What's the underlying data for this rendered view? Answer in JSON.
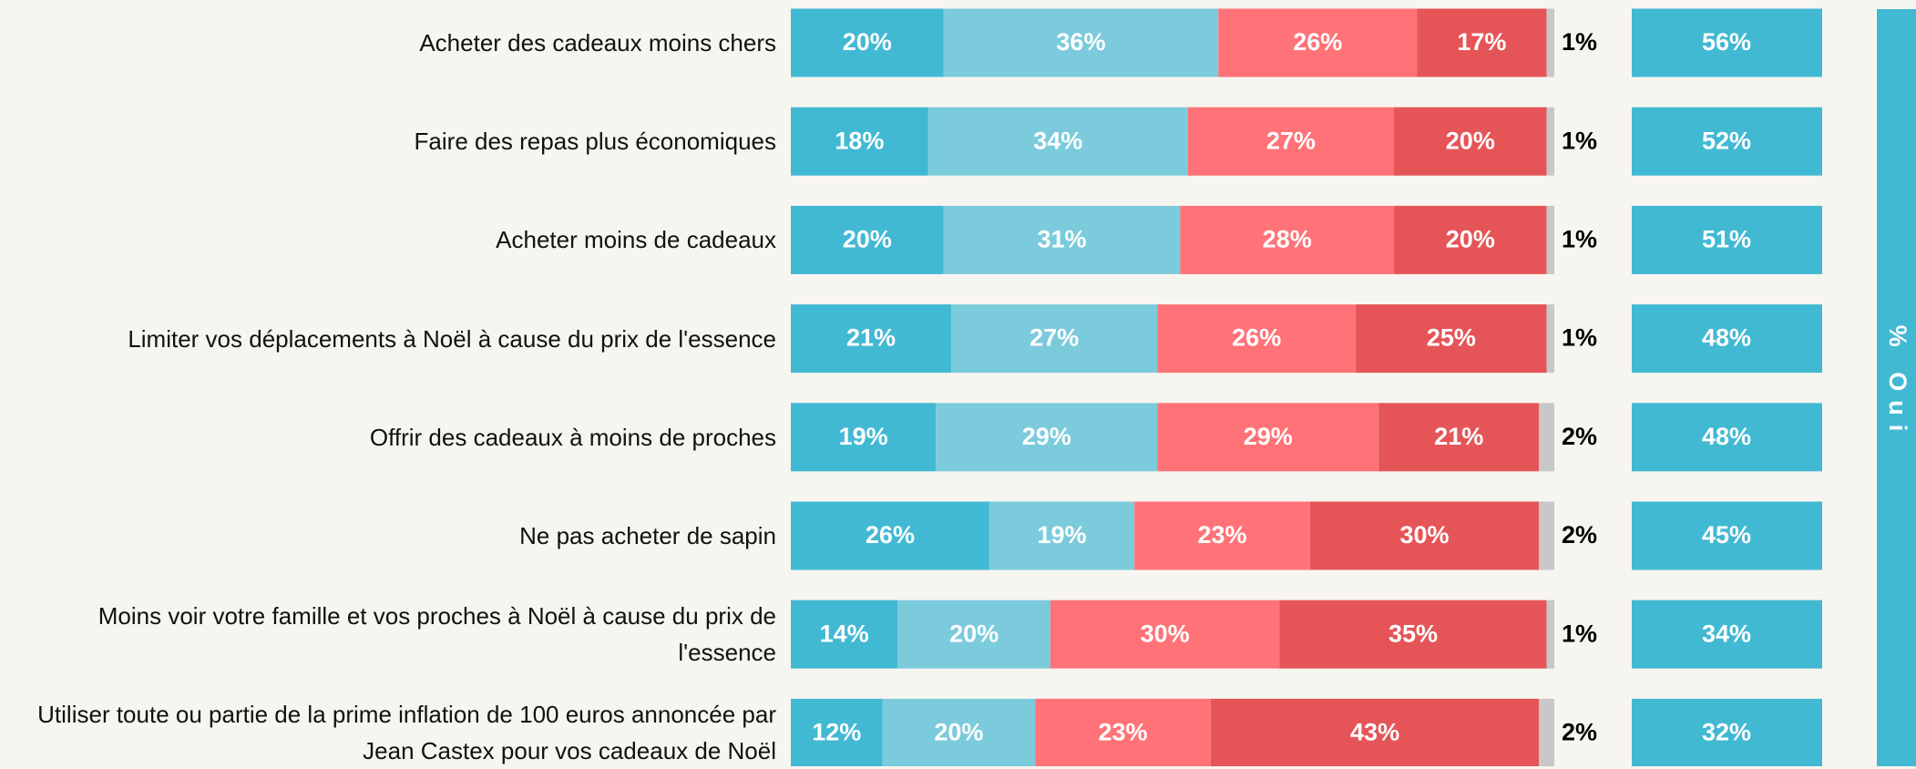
{
  "chart_data": {
    "type": "stacked-bar",
    "categories": [
      "Acheter des cadeaux moins chers",
      "Faire des repas plus économiques",
      "Acheter moins de cadeaux",
      "Limiter vos déplacements à Noël à cause du prix de l'essence",
      "Offrir des cadeaux à moins de proches",
      "Ne pas acheter de sapin",
      "Moins voir votre famille et vos proches à Noël à cause du prix de l'essence",
      "Utiliser toute ou partie de la prime inflation de 100 euros annoncée par Jean Castex pour vos cadeaux de Noël"
    ],
    "xlim": [
      0,
      100
    ],
    "series": [
      {
        "color": "#42b9d3",
        "values": [
          20,
          18,
          20,
          21,
          19,
          26,
          14,
          12
        ],
        "value_labels": [
          "20%",
          "18%",
          "20%",
          "21%",
          "19%",
          "26%",
          "14%",
          "12%"
        ]
      },
      {
        "color": "#7ccbdc",
        "values": [
          36,
          34,
          31,
          27,
          29,
          19,
          20,
          20
        ],
        "value_labels": [
          "36%",
          "34%",
          "31%",
          "27%",
          "29%",
          "19%",
          "20%",
          "20%"
        ]
      },
      {
        "color": "#ff7378",
        "values": [
          26,
          27,
          28,
          26,
          29,
          23,
          30,
          23
        ],
        "value_labels": [
          "26%",
          "27%",
          "28%",
          "26%",
          "29%",
          "23%",
          "30%",
          "23%"
        ]
      },
      {
        "color": "#e55558",
        "values": [
          17,
          20,
          20,
          25,
          21,
          30,
          35,
          43
        ],
        "value_labels": [
          "17%",
          "20%",
          "20%",
          "25%",
          "21%",
          "30%",
          "35%",
          "43%"
        ]
      },
      {
        "color": "#c8c8c8",
        "values": [
          1,
          1,
          1,
          1,
          2,
          2,
          1,
          2
        ],
        "value_labels": [
          "1%",
          "1%",
          "1%",
          "1%",
          "2%",
          "2%",
          "1%",
          "2%"
        ]
      }
    ],
    "oui": {
      "label": "% Oui",
      "color": "#42b9d3",
      "values": [
        56,
        52,
        51,
        48,
        48,
        45,
        34,
        32
      ],
      "value_labels": [
        "56%",
        "52%",
        "51%",
        "48%",
        "48%",
        "45%",
        "34%",
        "32%"
      ]
    }
  }
}
